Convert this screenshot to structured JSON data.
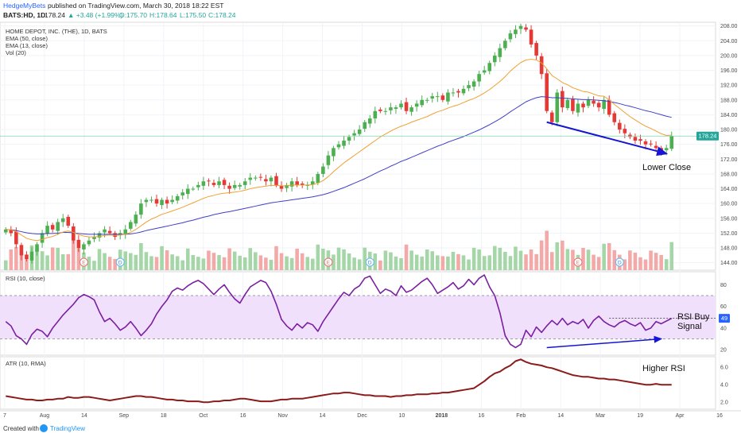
{
  "header": {
    "publisher": "HedgeMyBets",
    "published_text": "published on TradingView.com, March 30, 2018 18:22 EST",
    "symbol": "BATS:HD, 1D",
    "last": "178.24",
    "change": "▲ +3.48 (+1.99%)",
    "open": "O:175.70",
    "high": "H:178.64",
    "low": "L:175.50",
    "close": "C:178.24"
  },
  "legend": {
    "title": "HOME DEPOT, INC. (THE), 1D, BATS",
    "ema50": "EMA (50, close)",
    "ema13": "EMA (13, close)",
    "vol": "Vol (20)",
    "rsi": "RSI (10, close)",
    "atr": "ATR (10, RMA)"
  },
  "footer": {
    "created_with": "Created with",
    "brand": "TradingView"
  },
  "annotations": {
    "lower_close": "Lower Close",
    "rsi_buy_line1": "RSI Buy",
    "rsi_buy_line2": "Signal",
    "higher_rsi": "Higher RSI"
  },
  "price_badge": "178.24",
  "rsi_badge": "49",
  "event_markers": [
    "E",
    "D",
    "E",
    "D",
    "E",
    "D"
  ],
  "colors": {
    "up": "#4caf50",
    "down": "#e53935",
    "ema50": "#3f3fc8",
    "ema13": "#f0a030",
    "rsi": "#7b1fa2",
    "rsi_band": "#f0e0fb",
    "atr": "#8b1a1a",
    "arrow": "#1515d6",
    "badge": "#2196f3",
    "vol_up": "#a5d6a7",
    "vol_down": "#f4a9a9"
  },
  "chart_data": [
    {
      "type": "candlestick",
      "title": "HOME DEPOT, INC. (THE), 1D, BATS",
      "x_tick_labels": [
        "7",
        "Aug",
        "14",
        "Sep",
        "18",
        "Oct",
        "16",
        "Nov",
        "14",
        "Dec",
        "10",
        "2018",
        "16",
        "Feb",
        "14",
        "Mar",
        "19",
        "Apr",
        "16"
      ],
      "y_tick_labels": [
        "208.00",
        "204.00",
        "200.00",
        "196.00",
        "192.00",
        "188.00",
        "184.00",
        "180.00",
        "176.00",
        "172.00",
        "168.00",
        "164.00",
        "160.00",
        "156.00",
        "152.00",
        "148.00",
        "144.00"
      ],
      "ylim": [
        142,
        209
      ],
      "close_approx": [
        153,
        152,
        149,
        146,
        145,
        147,
        149,
        152,
        154,
        153,
        155,
        156,
        154,
        150,
        148,
        149,
        150,
        151,
        152,
        153,
        152,
        151,
        152,
        153,
        155,
        157,
        160,
        161,
        161,
        160,
        161,
        160,
        161,
        162,
        163,
        164,
        164,
        165,
        166,
        166,
        165,
        166,
        165,
        164,
        165,
        165,
        166,
        167,
        167,
        167,
        166,
        167,
        165,
        164,
        165,
        166,
        165,
        165,
        165,
        166,
        168,
        170,
        173,
        175,
        176,
        177,
        178,
        179,
        180,
        182,
        183,
        185,
        185,
        185,
        186,
        186,
        187,
        185,
        186,
        187,
        188,
        188,
        189,
        189,
        188,
        190,
        190,
        190,
        191,
        192,
        193,
        195,
        196,
        198,
        200,
        202,
        204,
        206,
        207,
        208,
        207,
        203,
        200,
        195,
        185,
        182,
        190,
        186,
        188,
        185,
        187,
        186,
        188,
        187,
        186,
        188,
        184,
        182,
        180,
        179,
        178,
        177,
        177,
        176,
        176,
        175,
        174,
        175,
        178.24
      ],
      "current_price": 178.24,
      "series": [
        {
          "name": "EMA (50, close)",
          "values": [
            153,
            152.9,
            152.7,
            152.4,
            152.1,
            151.9,
            151.8,
            151.8,
            151.9,
            151.9,
            152.0,
            152.2,
            152.2,
            152.1,
            151.9,
            151.8,
            151.7,
            151.7,
            151.7,
            151.7,
            151.7,
            151.7,
            151.7,
            151.7,
            151.8,
            152.0,
            152.3,
            152.7,
            153.0,
            153.3,
            153.6,
            153.9,
            154.2,
            154.5,
            154.8,
            155.2,
            155.5,
            155.9,
            156.3,
            156.6,
            157.0,
            157.3,
            157.6,
            157.8,
            158.1,
            158.4,
            158.7,
            159.0,
            159.3,
            159.6,
            159.9,
            160.2,
            160.4,
            160.6,
            160.8,
            161.0,
            161.2,
            161.4,
            161.6,
            161.8,
            162.1,
            162.4,
            162.8,
            163.3,
            163.8,
            164.3,
            164.9,
            165.5,
            166.1,
            166.7,
            167.4,
            168.1,
            168.8,
            169.4,
            170.1,
            170.7,
            171.4,
            171.9,
            172.5,
            173.1,
            173.7,
            174.3,
            174.9,
            175.5,
            176.0,
            176.6,
            177.1,
            177.6,
            178.1,
            178.7,
            179.3,
            179.9,
            180.6,
            181.3,
            182.1,
            182.9,
            183.8,
            184.8,
            185.7,
            186.6,
            187.5,
            188.1,
            188.6,
            188.9,
            188.8,
            188.6,
            188.6,
            188.5,
            188.4,
            188.3,
            188.2,
            188.1,
            188.1,
            188.0,
            187.9,
            187.8,
            187.6,
            187.3,
            187.0,
            186.6,
            186.3,
            185.9,
            185.5,
            185.1,
            184.8,
            184.4,
            184.0,
            183.6,
            183.3
          ]
        },
        {
          "name": "EMA (13, close)",
          "values": [
            153,
            152.9,
            152.4,
            151.5,
            150.6,
            150.2,
            150.0,
            150.3,
            150.8,
            151.1,
            151.7,
            152.3,
            152.6,
            152.2,
            151.6,
            151.2,
            151.0,
            151.0,
            151.1,
            151.4,
            151.5,
            151.4,
            151.5,
            151.7,
            152.2,
            153.0,
            154.0,
            155.0,
            155.8,
            156.4,
            157.1,
            157.5,
            158.0,
            158.5,
            159.0,
            159.6,
            160.2,
            160.8,
            161.4,
            161.9,
            162.2,
            162.6,
            162.8,
            162.9,
            163.1,
            163.3,
            163.6,
            164.0,
            164.3,
            164.5,
            164.7,
            164.9,
            164.9,
            164.8,
            164.8,
            165.0,
            165.0,
            165.0,
            165.0,
            165.1,
            165.5,
            166.2,
            167.3,
            168.6,
            169.8,
            171.0,
            172.0,
            173.0,
            174.0,
            175.0,
            176.0,
            177.0,
            178.0,
            178.8,
            179.6,
            180.3,
            180.9,
            181.4,
            182.0,
            182.5,
            183.0,
            183.5,
            184.2,
            184.8,
            185.2,
            185.8,
            186.3,
            186.7,
            187.3,
            187.9,
            188.4,
            189.1,
            189.9,
            190.8,
            191.9,
            193.0,
            194.3,
            195.8,
            197.0,
            198.1,
            198.8,
            199.0,
            198.8,
            198.0,
            196.4,
            194.6,
            193.7,
            192.7,
            192.1,
            191.3,
            190.8,
            190.3,
            190.1,
            189.6,
            189.1,
            189.0,
            188.0,
            186.8,
            185.7,
            184.6,
            183.5,
            182.6,
            181.7,
            180.9,
            180.3,
            179.6,
            178.9,
            178.4,
            178.5
          ]
        }
      ]
    },
    {
      "type": "line",
      "title": "RSI (10, close)",
      "y_tick_labels": [
        "80",
        "60",
        "40",
        "20"
      ],
      "ylim": [
        15,
        92
      ],
      "band": [
        30,
        70
      ],
      "reference_level": 49,
      "series": [
        {
          "name": "RSI (10, close)",
          "values": [
            46,
            42,
            33,
            30,
            25,
            34,
            39,
            37,
            32,
            40,
            46,
            52,
            57,
            62,
            68,
            71,
            69,
            66,
            55,
            46,
            49,
            44,
            38,
            41,
            46,
            40,
            33,
            38,
            44,
            53,
            60,
            66,
            74,
            77,
            75,
            79,
            82,
            84,
            81,
            76,
            71,
            76,
            80,
            73,
            67,
            63,
            71,
            78,
            81,
            84,
            82,
            74,
            62,
            48,
            42,
            38,
            44,
            40,
            45,
            43,
            37,
            46,
            53,
            60,
            67,
            73,
            70,
            76,
            79,
            86,
            88,
            80,
            72,
            76,
            74,
            70,
            79,
            73,
            75,
            79,
            83,
            86,
            80,
            72,
            75,
            78,
            82,
            76,
            79,
            85,
            80,
            86,
            89,
            78,
            70,
            54,
            33,
            25,
            22,
            25,
            38,
            32,
            41,
            36,
            42,
            47,
            43,
            49,
            43,
            46,
            44,
            48,
            40,
            47,
            51,
            46,
            43,
            41,
            45,
            47,
            44,
            42,
            45,
            38,
            40,
            46,
            44,
            49
          ]
        }
      ]
    },
    {
      "type": "line",
      "title": "ATR (10, RMA)",
      "y_tick_labels": [
        "6.0",
        "4.0",
        "2.0"
      ],
      "ylim": [
        1.2,
        7.2
      ],
      "series": [
        {
          "name": "ATR (10, RMA)",
          "values": [
            2.7,
            2.6,
            2.5,
            2.4,
            2.3,
            2.3,
            2.2,
            2.2,
            2.3,
            2.3,
            2.4,
            2.4,
            2.6,
            2.5,
            2.5,
            2.6,
            2.6,
            2.5,
            2.4,
            2.3,
            2.2,
            2.3,
            2.4,
            2.5,
            2.6,
            2.7,
            2.7,
            2.6,
            2.6,
            2.5,
            2.4,
            2.3,
            2.3,
            2.2,
            2.2,
            2.1,
            2.1,
            2.1,
            2.0,
            2.0,
            2.1,
            2.1,
            2.2,
            2.2,
            2.3,
            2.4,
            2.4,
            2.3,
            2.2,
            2.1,
            2.1,
            2.1,
            2.2,
            2.3,
            2.3,
            2.4,
            2.4,
            2.4,
            2.5,
            2.6,
            2.7,
            2.8,
            2.9,
            3.0,
            3.0,
            3.1,
            3.1,
            3.0,
            2.9,
            2.8,
            2.8,
            2.7,
            2.7,
            2.7,
            2.6,
            2.7,
            2.7,
            2.8,
            2.8,
            2.9,
            2.9,
            2.9,
            3.0,
            3.0,
            3.1,
            3.1,
            3.2,
            3.3,
            3.4,
            3.5,
            3.6,
            4.0,
            4.4,
            4.9,
            5.3,
            5.5,
            5.9,
            6.2,
            6.7,
            6.9,
            6.6,
            6.4,
            6.3,
            6.2,
            6.0,
            5.9,
            5.7,
            5.5,
            5.3,
            5.1,
            5.0,
            4.9,
            4.9,
            4.8,
            4.7,
            4.7,
            4.6,
            4.6,
            4.5,
            4.4,
            4.3,
            4.2,
            4.1,
            4.0,
            4.0,
            4.1,
            4.0,
            4.0
          ]
        }
      ]
    }
  ]
}
